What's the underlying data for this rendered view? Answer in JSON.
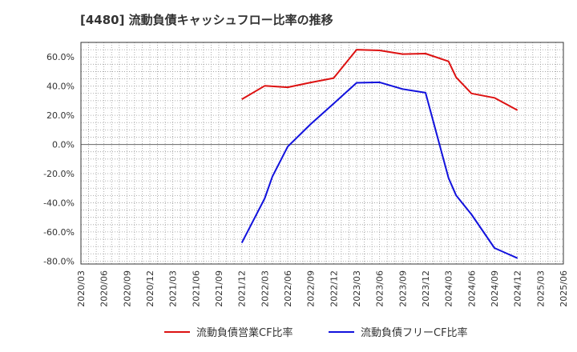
{
  "chart_data": {
    "type": "line",
    "title": "[4480]  流動負債キャッシュフロー比率の推移",
    "xlabel": "",
    "ylabel": "",
    "ylim": [
      -82,
      70
    ],
    "y_ticks": [
      60,
      40,
      20,
      0,
      -20,
      -40,
      -60,
      -80
    ],
    "y_tick_labels": [
      "60.0%",
      "40.0%",
      "20.0%",
      "0.0%",
      "-20.0%",
      "-40.0%",
      "-60.0%",
      "-80.0%"
    ],
    "x_tick_labels": [
      "2020/03",
      "2020/06",
      "2020/09",
      "2020/12",
      "2021/03",
      "2021/06",
      "2021/09",
      "2021/12",
      "2022/03",
      "2022/06",
      "2022/09",
      "2022/12",
      "2023/03",
      "2023/06",
      "2023/09",
      "2023/12",
      "2024/03",
      "2024/06",
      "2024/09",
      "2024/12",
      "2025/03",
      "2025/06"
    ],
    "grid": true,
    "legend_position": "bottom",
    "series": [
      {
        "name": "流動負債営業CF比率",
        "color": "#dd1111",
        "points": [
          [
            "2021/12",
            31
          ],
          [
            "2022/03",
            40.2
          ],
          [
            "2022/06",
            39.2
          ],
          [
            "2022/09",
            42.5
          ],
          [
            "2022/12",
            45.5
          ],
          [
            "2023/03",
            65
          ],
          [
            "2023/06",
            64.5
          ],
          [
            "2023/09",
            62
          ],
          [
            "2023/12",
            62.3
          ],
          [
            "2024/03",
            57
          ],
          [
            "2024/04",
            46
          ],
          [
            "2024/06",
            35
          ],
          [
            "2024/09",
            32
          ],
          [
            "2024/12",
            23.5
          ]
        ]
      },
      {
        "name": "流動負債フリーCF比率",
        "color": "#1111dd",
        "points": [
          [
            "2021/12",
            -67.5
          ],
          [
            "2022/03",
            -37
          ],
          [
            "2022/04",
            -22
          ],
          [
            "2022/06",
            -1.5
          ],
          [
            "2022/09",
            14
          ],
          [
            "2022/12",
            28
          ],
          [
            "2023/03",
            42.3
          ],
          [
            "2023/06",
            42.6
          ],
          [
            "2023/09",
            38
          ],
          [
            "2023/12",
            35.5
          ],
          [
            "2024/03",
            -23
          ],
          [
            "2024/04",
            -35
          ],
          [
            "2024/06",
            -48
          ],
          [
            "2024/09",
            -71
          ],
          [
            "2024/12",
            -78
          ]
        ]
      }
    ]
  }
}
